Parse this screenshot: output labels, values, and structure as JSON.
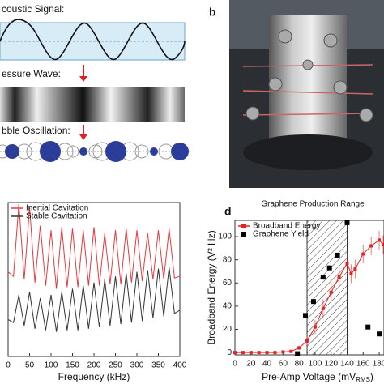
{
  "panel_a": {
    "signal_label": "coustic Signal:",
    "wave_label": "essure Wave:",
    "bubble_label": "bble Oscillation:"
  },
  "panel_b": {
    "label": "b"
  },
  "chart_data": [
    {
      "type": "line",
      "xlabel": "Frequency (kHz)",
      "legend": "upper left",
      "x": [
        0,
        12.5,
        25,
        37.5,
        50,
        62.5,
        75,
        87.5,
        100,
        112.5,
        125,
        137.5,
        150,
        162.5,
        175,
        187.5,
        200,
        212.5,
        225,
        237.5,
        250,
        262.5,
        275,
        287.5,
        300,
        312.5,
        325,
        337.5,
        350,
        362.5,
        375,
        387.5,
        400
      ],
      "series": [
        {
          "name": "Inertial Cavitation",
          "color": "#e8383d",
          "values": [
            55,
            52,
            99,
            50,
            97,
            48,
            85,
            46,
            82,
            44,
            84,
            45,
            83,
            45,
            82,
            46,
            84,
            46,
            80,
            47,
            82,
            47,
            83,
            48,
            82,
            49,
            80,
            50,
            82,
            50,
            83,
            51,
            52
          ]
        },
        {
          "name": "Stable Cavitation",
          "color": "#333333",
          "values": [
            24,
            22,
            40,
            20,
            42,
            18,
            38,
            17,
            40,
            16,
            42,
            17,
            44,
            17,
            46,
            18,
            48,
            19,
            50,
            20,
            52,
            21,
            54,
            22,
            55,
            23,
            56,
            25,
            57,
            26,
            58,
            28,
            30
          ]
        }
      ],
      "xlim": [
        0,
        400
      ],
      "xticks": [
        0,
        50,
        100,
        150,
        200,
        250,
        300,
        350,
        400
      ],
      "ylim": [
        0,
        100
      ]
    },
    {
      "type": "line",
      "label": "d",
      "title": "Graphene Production Range",
      "xlabel": "Pre-Amp Voltage (mV",
      "xlabel_sub": "RMS",
      "xlabel_end": ")",
      "ylabel": "Broadband Energy (V² Hz)",
      "legend": "upper left",
      "shaded_range": [
        90,
        140
      ],
      "series": [
        {
          "name": "Broadband Energy",
          "color": "#e8201f",
          "mode": "line+markers",
          "x": [
            0,
            10,
            20,
            30,
            40,
            50,
            60,
            70,
            80,
            90,
            100,
            110,
            120,
            130,
            140,
            145,
            150,
            160,
            170,
            180,
            185
          ],
          "values": [
            0,
            0,
            0,
            0,
            0,
            0,
            0.5,
            1,
            4,
            10,
            22,
            38,
            52,
            65,
            77,
            68,
            72,
            85,
            92,
            97,
            93
          ],
          "errors": [
            0,
            0,
            0,
            0,
            0,
            0,
            0.5,
            1,
            2,
            4,
            6,
            8,
            8,
            8,
            10,
            8,
            8,
            8,
            8,
            8,
            8
          ]
        },
        {
          "name": "Graphene Yield",
          "color": "#000000",
          "mode": "markers",
          "x": [
            78,
            88,
            98,
            110,
            118,
            128,
            140,
            166,
            180
          ],
          "values": [
            -1,
            32,
            44,
            65,
            73,
            84,
            112,
            22,
            16
          ]
        }
      ],
      "xlim": [
        0,
        186
      ],
      "xticks": [
        0,
        20,
        40,
        60,
        80,
        100,
        120,
        140,
        160,
        180
      ],
      "ylim": [
        -2,
        114
      ],
      "yticks": [
        0,
        20,
        40,
        60,
        80,
        100
      ]
    }
  ]
}
